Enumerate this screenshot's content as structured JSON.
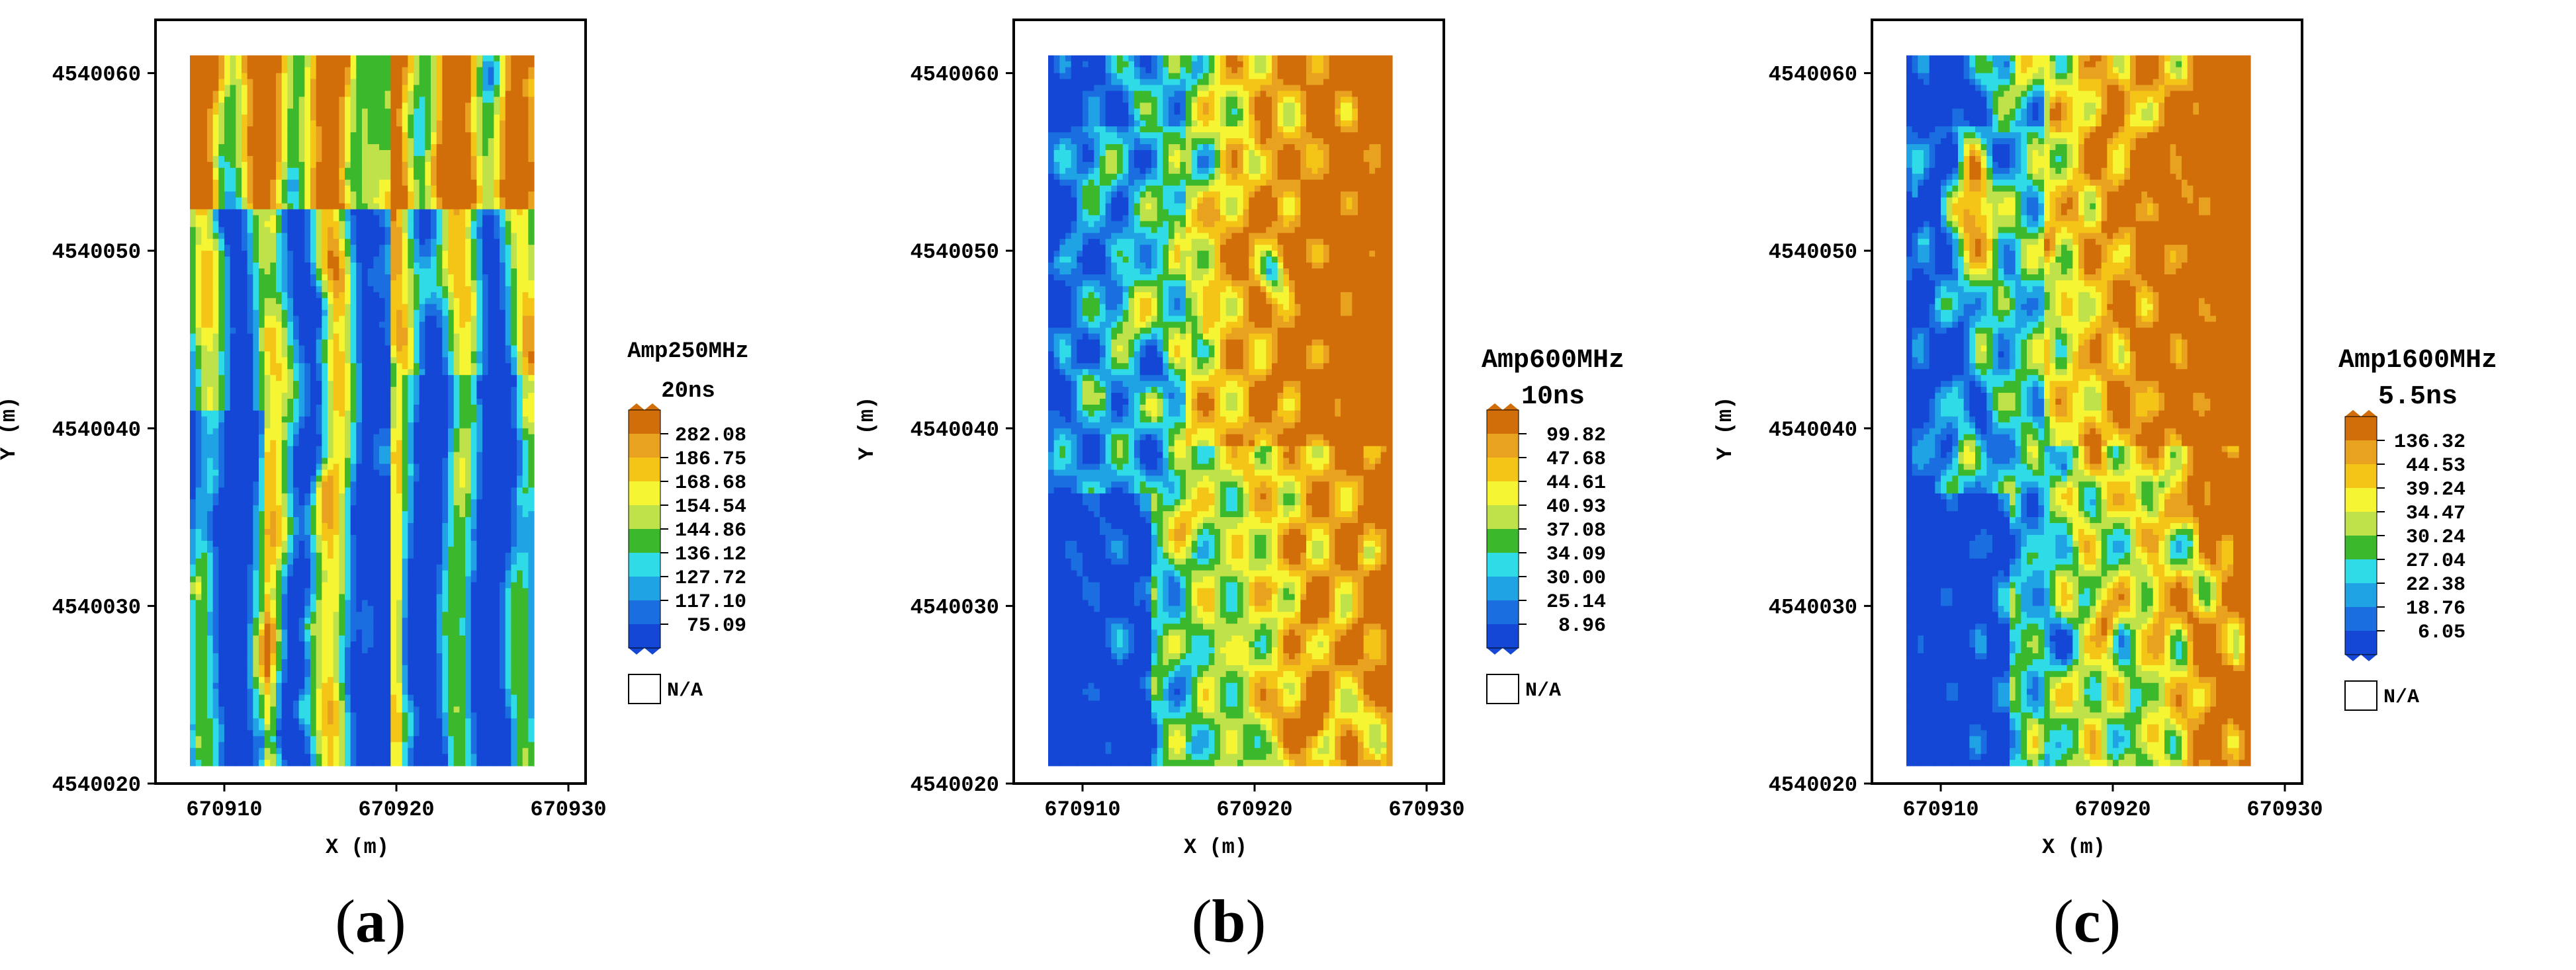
{
  "figures": [
    {
      "id": "a",
      "caption_letter": "a",
      "legend_title": [
        "Amp250MHz",
        "20ns"
      ],
      "legend_levels": [
        "282.08",
        "186.75",
        "168.68",
        "154.54",
        "144.86",
        "136.12",
        "127.72",
        "117.10",
        "75.09"
      ],
      "na_label": "N/A",
      "variant": 0
    },
    {
      "id": "b",
      "caption_letter": "b",
      "legend_title": [
        "Amp600MHz",
        "10ns"
      ],
      "legend_levels": [
        "99.82",
        "47.68",
        "44.61",
        "40.93",
        "37.08",
        "34.09",
        "30.00",
        "25.14",
        "8.96"
      ],
      "na_label": "N/A",
      "variant": 1
    },
    {
      "id": "c",
      "caption_letter": "c",
      "legend_title": [
        "Amp1600MHz",
        "5.5ns"
      ],
      "legend_levels": [
        "136.32",
        "44.53",
        "39.24",
        "34.47",
        "30.24",
        "27.04",
        "22.38",
        "18.76",
        "6.05"
      ],
      "na_label": "N/A",
      "variant": 2
    }
  ],
  "chart_data": [
    {
      "type": "heatmap",
      "title": "Amp250MHz 20ns",
      "xlabel": "X (m)",
      "ylabel": "Y (m)",
      "xlim": [
        670906,
        670931
      ],
      "ylim": [
        4540020,
        4540063
      ],
      "xticks": [
        "670910",
        "670920",
        "670930"
      ],
      "yticks": [
        "4540020",
        "4540030",
        "4540040",
        "4540050",
        "4540060"
      ],
      "data_extent": {
        "x": [
          670908,
          670928
        ],
        "y": [
          4540021,
          4540061
        ]
      },
      "color_levels": [
        "282.08",
        "186.75",
        "168.68",
        "154.54",
        "144.86",
        "136.12",
        "127.72",
        "117.10",
        "75.09"
      ],
      "colors": [
        "#d26e0a",
        "#e9a21f",
        "#f4c517",
        "#f6f533",
        "#bfe24a",
        "#3cb82c",
        "#2edbe6",
        "#1fa3e5",
        "#1a6ee0",
        "#1447d6"
      ]
    },
    {
      "type": "heatmap",
      "title": "Amp600MHz 10ns",
      "xlabel": "X (m)",
      "ylabel": "Y (m)",
      "xlim": [
        670906,
        670931
      ],
      "ylim": [
        4540020,
        4540063
      ],
      "xticks": [
        "670910",
        "670920",
        "670930"
      ],
      "yticks": [
        "4540020",
        "4540030",
        "4540040",
        "4540050",
        "4540060"
      ],
      "data_extent": {
        "x": [
          670908,
          670928
        ],
        "y": [
          4540021,
          4540061
        ]
      },
      "color_levels": [
        "99.82",
        "47.68",
        "44.61",
        "40.93",
        "37.08",
        "34.09",
        "30.00",
        "25.14",
        "8.96"
      ],
      "colors": [
        "#d26e0a",
        "#e9a21f",
        "#f4c517",
        "#f6f533",
        "#bfe24a",
        "#3cb82c",
        "#2edbe6",
        "#1fa3e5",
        "#1a6ee0",
        "#1447d6"
      ]
    },
    {
      "type": "heatmap",
      "title": "Amp1600MHz 5.5ns",
      "xlabel": "X (m)",
      "ylabel": "Y (m)",
      "xlim": [
        670906,
        670931
      ],
      "ylim": [
        4540020,
        4540063
      ],
      "xticks": [
        "670910",
        "670920",
        "670930"
      ],
      "yticks": [
        "4540020",
        "4540030",
        "4540040",
        "4540050",
        "4540060"
      ],
      "data_extent": {
        "x": [
          670908,
          670928
        ],
        "y": [
          4540021,
          4540061
        ]
      },
      "color_levels": [
        "136.32",
        "44.53",
        "39.24",
        "34.47",
        "30.24",
        "27.04",
        "22.38",
        "18.76",
        "6.05"
      ],
      "colors": [
        "#d26e0a",
        "#e9a21f",
        "#f4c517",
        "#f6f533",
        "#bfe24a",
        "#3cb82c",
        "#2edbe6",
        "#1fa3e5",
        "#1a6ee0",
        "#1447d6"
      ]
    }
  ]
}
